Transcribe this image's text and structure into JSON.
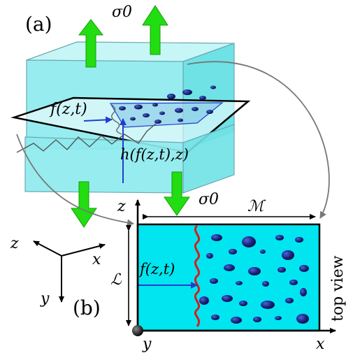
{
  "panel_a": {
    "label": "(a)",
    "stress_top": "σ0",
    "front_label": "f(z,t)",
    "height_label": "h(f(z,t),z)"
  },
  "panel_b": {
    "label": "(b)",
    "stress": "σ0",
    "width_label": "ℳ",
    "height_label": "ℒ",
    "front_label": "f(z,t)",
    "side_label": "top view",
    "axis_z": "z",
    "axis_x": "x",
    "axis_y": "y"
  },
  "triad": {
    "z": "z",
    "x": "x",
    "y": "y"
  },
  "colors": {
    "sample_fill": "#00e5f0",
    "block_fill": "#9eefef",
    "crack_front": "#d0201c",
    "arrow_green": "#22dd11",
    "inclusions": "#1a237e",
    "front_arrow": "#1f3fd0"
  }
}
